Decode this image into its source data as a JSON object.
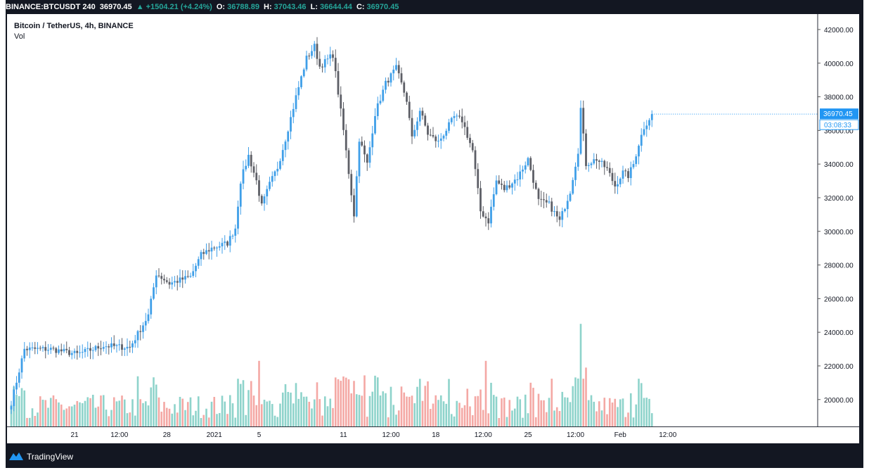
{
  "header": {
    "symbol": "BINANCE:BTCUSDT",
    "interval": "240",
    "last": "36970.45",
    "change_arrow": "▲",
    "change": "+1504.21 (+4.24%)",
    "o_label": "O:",
    "o_value": "36788.89",
    "h_label": "H:",
    "h_value": "37043.46",
    "l_label": "L:",
    "l_value": "36644.44",
    "c_label": "C:",
    "c_value": "36970.45"
  },
  "legend": {
    "title": "Bitcoin / TetherUS, 4h, BINANCE",
    "vol_label": "Vol"
  },
  "footer": {
    "brand": "TradingView",
    "logo_icon": "tradingview-logo-icon"
  },
  "colors": {
    "up": "#3f9fe8",
    "down": "#5d5f66",
    "vol_up": "#8ed3cb",
    "vol_down": "#f4a8a4",
    "price_label": "#2196f3",
    "frame": "#131722"
  },
  "chart_data": {
    "type": "candlestick",
    "title": "Bitcoin / TetherUS, 4h, BINANCE",
    "last_price_label": "36970.45",
    "countdown_label": "03:08:33",
    "y_ticks": [
      "42000.00",
      "40000.00",
      "38000.00",
      "36000.00",
      "34000.00",
      "32000.00",
      "30000.00",
      "28000.00",
      "26000.00",
      "24000.00",
      "22000.00",
      "20000.00"
    ],
    "y_tick_values": [
      42000,
      40000,
      38000,
      36000,
      34000,
      32000,
      30000,
      28000,
      26000,
      24000,
      22000,
      20000
    ],
    "ylim": [
      18400,
      42500
    ],
    "x_ticks": [
      {
        "label": "21",
        "index": 24
      },
      {
        "label": "12:00",
        "index": 41
      },
      {
        "label": "28",
        "index": 59
      },
      {
        "label": "2021",
        "index": 77
      },
      {
        "label": "5",
        "index": 94
      },
      {
        "label": "11",
        "index": 126
      },
      {
        "label": "12:00",
        "index": 144
      },
      {
        "label": "18",
        "index": 161
      },
      {
        "label": "12:00",
        "index": 179
      },
      {
        "label": "25",
        "index": 196
      },
      {
        "label": "12:00",
        "index": 214
      },
      {
        "label": "Feb",
        "index": 231
      },
      {
        "label": "12:00",
        "index": 249
      }
    ],
    "close_anchors": [
      [
        0,
        19800
      ],
      [
        5,
        23000
      ],
      [
        15,
        23000
      ],
      [
        25,
        22700
      ],
      [
        35,
        23200
      ],
      [
        45,
        23100
      ],
      [
        52,
        25000
      ],
      [
        55,
        27500
      ],
      [
        60,
        26900
      ],
      [
        68,
        27300
      ],
      [
        72,
        28600
      ],
      [
        76,
        29000
      ],
      [
        82,
        29300
      ],
      [
        85,
        30200
      ],
      [
        87,
        33000
      ],
      [
        90,
        34500
      ],
      [
        93,
        33000
      ],
      [
        95,
        31500
      ],
      [
        98,
        32800
      ],
      [
        101,
        33800
      ],
      [
        104,
        35500
      ],
      [
        108,
        38000
      ],
      [
        112,
        40300
      ],
      [
        115,
        41000
      ],
      [
        117,
        39800
      ],
      [
        122,
        40500
      ],
      [
        126,
        36000
      ],
      [
        128,
        33500
      ],
      [
        130,
        31000
      ],
      [
        132,
        35500
      ],
      [
        135,
        34000
      ],
      [
        138,
        37000
      ],
      [
        142,
        38800
      ],
      [
        146,
        39700
      ],
      [
        150,
        37800
      ],
      [
        152,
        35500
      ],
      [
        155,
        37200
      ],
      [
        158,
        35800
      ],
      [
        162,
        35300
      ],
      [
        168,
        36800
      ],
      [
        171,
        36600
      ],
      [
        175,
        34800
      ],
      [
        178,
        31200
      ],
      [
        181,
        30600
      ],
      [
        184,
        33000
      ],
      [
        187,
        32500
      ],
      [
        192,
        33200
      ],
      [
        196,
        34300
      ],
      [
        200,
        31800
      ],
      [
        204,
        31600
      ],
      [
        208,
        30600
      ],
      [
        212,
        32400
      ],
      [
        215,
        34800
      ],
      [
        216,
        37300
      ],
      [
        218,
        34000
      ],
      [
        222,
        34300
      ],
      [
        226,
        33700
      ],
      [
        229,
        32700
      ],
      [
        232,
        33500
      ],
      [
        234,
        33300
      ],
      [
        236,
        34000
      ],
      [
        238,
        35200
      ],
      [
        240,
        36200
      ],
      [
        242,
        36700
      ],
      [
        243,
        36970
      ]
    ],
    "volume_spikes": [
      {
        "index": 216,
        "value": 24500
      },
      {
        "index": 180,
        "value": 22300
      },
      {
        "index": 128,
        "value": 21200
      },
      {
        "index": 94,
        "value": 22300
      },
      {
        "index": 218,
        "value": 21900
      }
    ],
    "volume_baseline": 18900,
    "seed": 7
  }
}
